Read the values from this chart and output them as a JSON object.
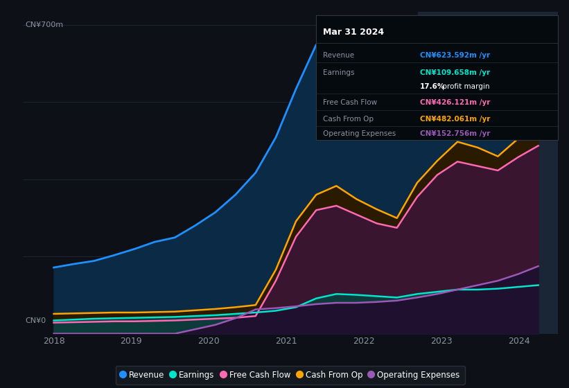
{
  "bg_color": "#0d1117",
  "plot_bg_color": "#0d1117",
  "tooltip_title": "Mar 31 2024",
  "ylabel_top": "CN¥700m",
  "ylabel_bottom": "CN¥0",
  "grid_color": "#1e2a3a",
  "revenue_color": "#1e90ff",
  "earnings_color": "#00e5cc",
  "fcf_color": "#ff69b4",
  "cashfromop_color": "#ffa500",
  "opex_color": "#9b59b6",
  "revenue_fill": "#0a2a45",
  "earnings_fill": "#0d3a3a",
  "fcf_fill": "#3a1530",
  "cashfromop_fill": "#2a1a00",
  "opex_fill": "#201030",
  "legend_bg": "#161b22",
  "legend_border": "#30363d",
  "tooltip_bg": "#050a0f",
  "tooltip_border": "#30363d",
  "revenue_detail": [
    150,
    158,
    165,
    178,
    192,
    208,
    218,
    245,
    275,
    315,
    365,
    445,
    555,
    655,
    685,
    645,
    582,
    522,
    492,
    502,
    512,
    532,
    562,
    602,
    623
  ],
  "earnings_detail": [
    30,
    32,
    34,
    35,
    36,
    37,
    38,
    40,
    42,
    45,
    48,
    52,
    60,
    80,
    90,
    88,
    85,
    82,
    90,
    95,
    100,
    100,
    102,
    106,
    110
  ],
  "fcf_detail": [
    25,
    26,
    27,
    28,
    28,
    29,
    30,
    32,
    34,
    36,
    40,
    120,
    220,
    280,
    290,
    270,
    250,
    240,
    310,
    360,
    390,
    380,
    370,
    400,
    426
  ],
  "cashfromop_detail": [
    45,
    46,
    47,
    48,
    48,
    49,
    50,
    53,
    56,
    60,
    65,
    145,
    255,
    315,
    335,
    305,
    282,
    262,
    342,
    392,
    435,
    422,
    402,
    442,
    482
  ],
  "opex_detail": [
    0,
    0,
    0,
    0,
    0,
    0,
    0,
    10,
    20,
    35,
    55,
    58,
    62,
    67,
    70,
    70,
    72,
    75,
    82,
    90,
    100,
    110,
    120,
    135,
    153
  ],
  "xlim_start": 2017.6,
  "xlim_end": 2024.5,
  "ylim_min": 0,
  "ylim_max": 730,
  "highlight_x_start": 2022.7,
  "highlight_x_end": 2024.5,
  "highlight_color": "#1a2535",
  "tooltip_rows": [
    {
      "label": "Revenue",
      "value": "CN¥623.592m /yr",
      "color": "#1e90ff",
      "separator": true
    },
    {
      "label": "Earnings",
      "value": "CN¥109.658m /yr",
      "color": "#00e5cc",
      "separator": false
    },
    {
      "label": "",
      "value": "17.6% profit margin",
      "color": "#ffffff",
      "separator": true,
      "bold_prefix": "17.6%"
    },
    {
      "label": "Free Cash Flow",
      "value": "CN¥426.121m /yr",
      "color": "#ff69b4",
      "separator": true
    },
    {
      "label": "Cash From Op",
      "value": "CN¥482.061m /yr",
      "color": "#ffa500",
      "separator": true
    },
    {
      "label": "Operating Expenses",
      "value": "CN¥152.756m /yr",
      "color": "#9b59b6",
      "separator": false
    }
  ],
  "legend_items": [
    {
      "label": "Revenue",
      "color": "#1e90ff"
    },
    {
      "label": "Earnings",
      "color": "#00e5cc"
    },
    {
      "label": "Free Cash Flow",
      "color": "#ff69b4"
    },
    {
      "label": "Cash From Op",
      "color": "#ffa500"
    },
    {
      "label": "Operating Expenses",
      "color": "#9b59b6"
    }
  ]
}
